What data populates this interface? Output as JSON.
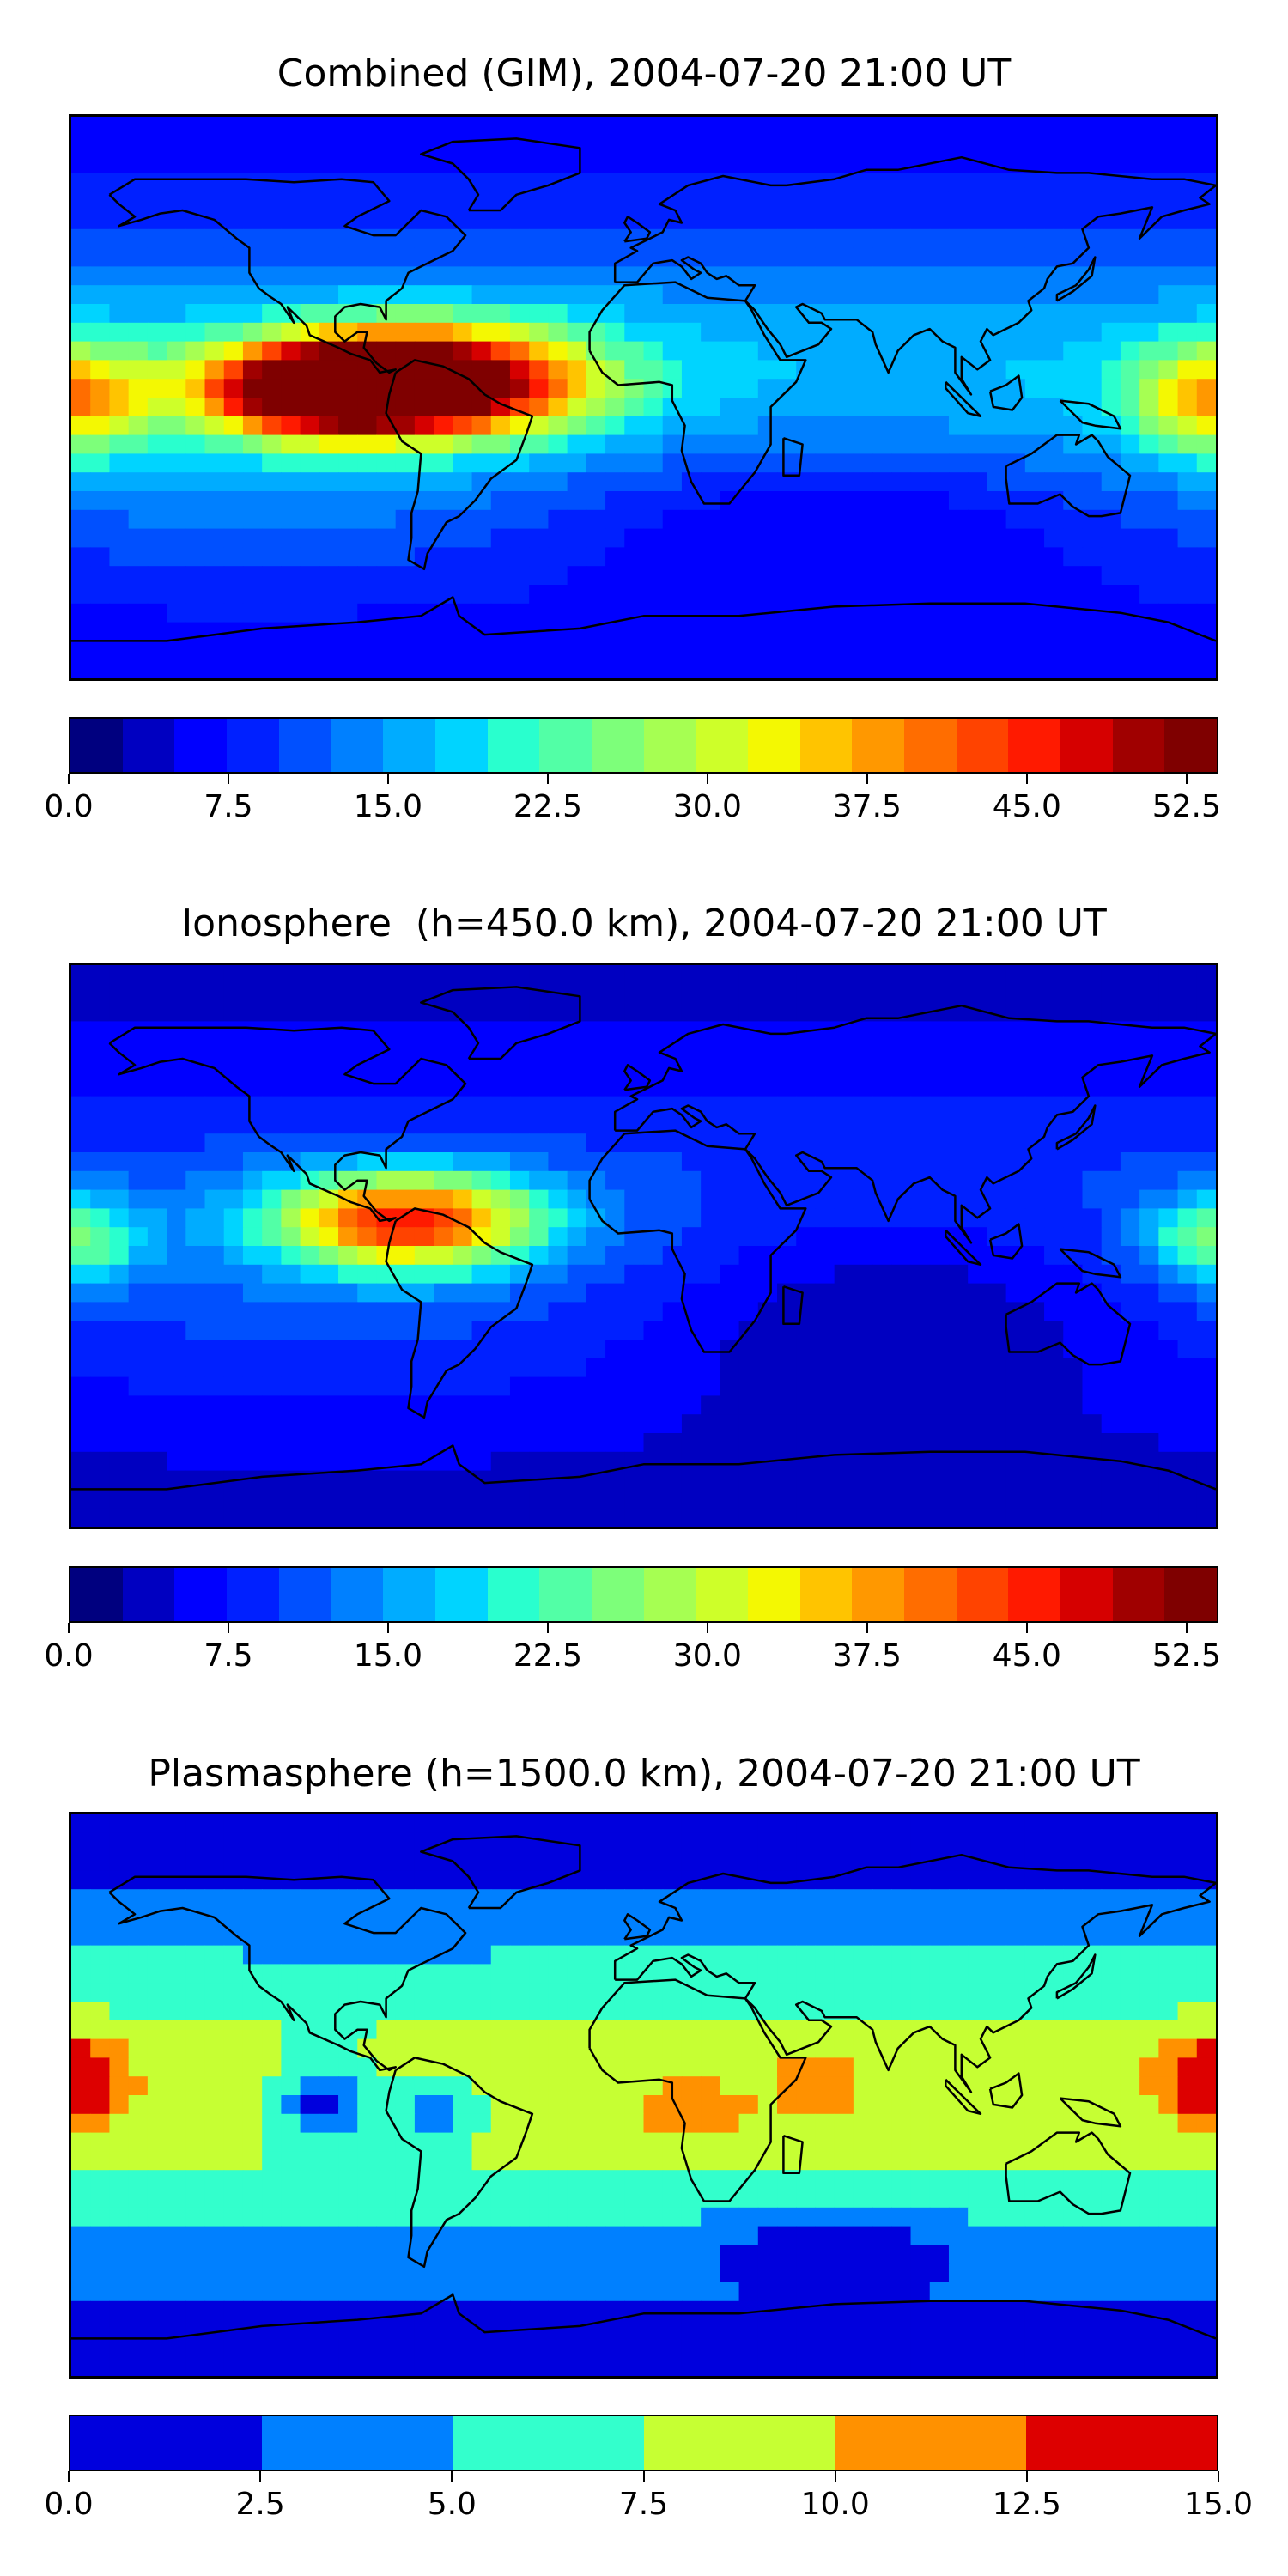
{
  "chart_data": [
    {
      "type": "heatmap",
      "title": "Combined (GIM), 2004-07-20 21:00 UT",
      "colorbar": {
        "min": 0.0,
        "max": 54.0,
        "levels": 22,
        "ticks": [
          "0.0",
          "7.5",
          "15.0",
          "22.5",
          "30.0",
          "37.5",
          "45.0",
          "52.5"
        ],
        "tick_values": [
          0.0,
          7.5,
          15.0,
          22.5,
          30.0,
          37.5,
          45.0,
          52.5
        ]
      },
      "field": {
        "base_equator": 18,
        "base_pole": 6,
        "features": [
          {
            "lon": -70,
            "lat": 5,
            "amp": 48,
            "slon": 35,
            "slat": 12
          },
          {
            "lon": -105,
            "lat": 2,
            "amp": 30,
            "slon": 25,
            "slat": 10
          },
          {
            "lon": 180,
            "lat": 0,
            "amp": 22,
            "slon": 18,
            "slat": 12
          },
          {
            "lon": 60,
            "lat": -35,
            "amp": -8,
            "slon": 70,
            "slat": 20
          }
        ]
      }
    },
    {
      "type": "heatmap",
      "title": "Ionosphere  (h=450.0 km), 2004-07-20 21:00 UT",
      "colorbar": {
        "min": 0.0,
        "max": 54.0,
        "levels": 22,
        "ticks": [
          "0.0",
          "7.5",
          "15.0",
          "22.5",
          "30.0",
          "37.5",
          "45.0",
          "52.5"
        ],
        "tick_values": [
          0.0,
          7.5,
          15.0,
          22.5,
          30.0,
          37.5,
          45.0,
          52.5
        ]
      },
      "field": {
        "base_equator": 12,
        "base_pole": 4,
        "features": [
          {
            "lon": -75,
            "lat": 8,
            "amp": 34,
            "slon": 30,
            "slat": 11
          },
          {
            "lon": 180,
            "lat": 2,
            "amp": 16,
            "slon": 15,
            "slat": 10
          },
          {
            "lon": 80,
            "lat": -20,
            "amp": -8,
            "slon": 60,
            "slat": 25
          }
        ]
      }
    },
    {
      "type": "heatmap",
      "title": "Plasmasphere (h=1500.0 km), 2004-07-20 21:00 UT",
      "colorbar": {
        "min": 0.0,
        "max": 15.0,
        "levels": 6,
        "ticks": [
          "0.0",
          "2.5",
          "5.0",
          "7.5",
          "10.0",
          "12.5",
          "15.0"
        ],
        "tick_values": [
          0.0,
          2.5,
          5.0,
          7.5,
          10.0,
          12.5,
          15.0
        ]
      },
      "field": {
        "base_equator": 8.5,
        "base_pole": 1.5,
        "features": [
          {
            "lon": -178,
            "lat": 5,
            "amp": 5,
            "slon": 12,
            "slat": 10
          },
          {
            "lon": 15,
            "lat": -5,
            "amp": 3,
            "slon": 15,
            "slat": 8
          },
          {
            "lon": 55,
            "lat": 5,
            "amp": 3,
            "slon": 10,
            "slat": 10
          },
          {
            "lon": 175,
            "lat": 5,
            "amp": 3,
            "slon": 12,
            "slat": 10
          },
          {
            "lon": -100,
            "lat": -2,
            "amp": -7,
            "slon": 10,
            "slat": 9
          },
          {
            "lon": -65,
            "lat": -5,
            "amp": -6,
            "slon": 8,
            "slat": 6
          },
          {
            "lon": 60,
            "lat": -48,
            "amp": -4,
            "slon": 30,
            "slat": 8
          }
        ]
      }
    }
  ],
  "colors": {
    "jet22": [
      "#00007f",
      "#0000c1",
      "#0000ff",
      "#0020ff",
      "#0050ff",
      "#0080ff",
      "#00acff",
      "#00d4ff",
      "#29ffce",
      "#52ffa6",
      "#7dff7a",
      "#a6ff52",
      "#ceff29",
      "#f4f802",
      "#ffc400",
      "#ff9800",
      "#ff6d00",
      "#ff4300",
      "#ff1a00",
      "#d60000",
      "#a00000",
      "#7f0000"
    ],
    "jet6": [
      "#0000dd",
      "#0080ff",
      "#33ffcc",
      "#c6ff33",
      "#ff9100",
      "#dd0000"
    ]
  }
}
